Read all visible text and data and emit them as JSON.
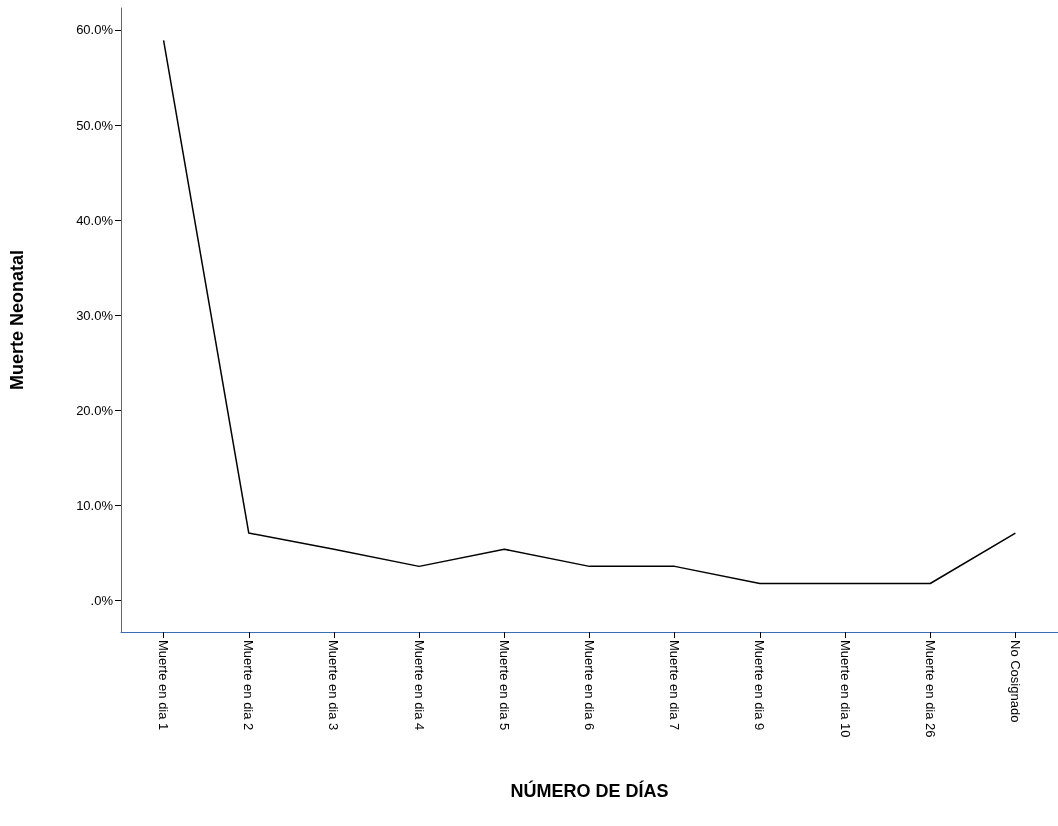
{
  "chart_data": {
    "type": "line",
    "xlabel": "NÚMERO DE DÍAS",
    "ylabel": "Muerte Neonatal",
    "categories": [
      "Muerte en dia 1",
      "Muerte en dia 2",
      "Muerte en dia 3",
      "Muerte en dia 4",
      "Muerte en dia 5",
      "Muerte en dia 6",
      "Muerte en dia 7",
      "Muerte en dia 9",
      "Muerte en dia 10",
      "Muerte en dia 26",
      "No Cosignado"
    ],
    "values": [
      58.9,
      7.1,
      5.4,
      3.6,
      5.4,
      3.6,
      3.6,
      1.8,
      1.8,
      1.8,
      7.1
    ],
    "color": "#000000",
    "ylim": [
      -3.3,
      62.3
    ],
    "yticks": [
      {
        "value": 0,
        "label": ".0%"
      },
      {
        "value": 10,
        "label": "10.0%"
      },
      {
        "value": 20,
        "label": "20.0%"
      },
      {
        "value": 30,
        "label": "30.0%"
      },
      {
        "value": 40,
        "label": "40.0%"
      },
      {
        "value": 50,
        "label": "50.0%"
      },
      {
        "value": 60,
        "label": "60.0%"
      }
    ],
    "grid": false,
    "marker": "none",
    "line_style": "solid"
  }
}
